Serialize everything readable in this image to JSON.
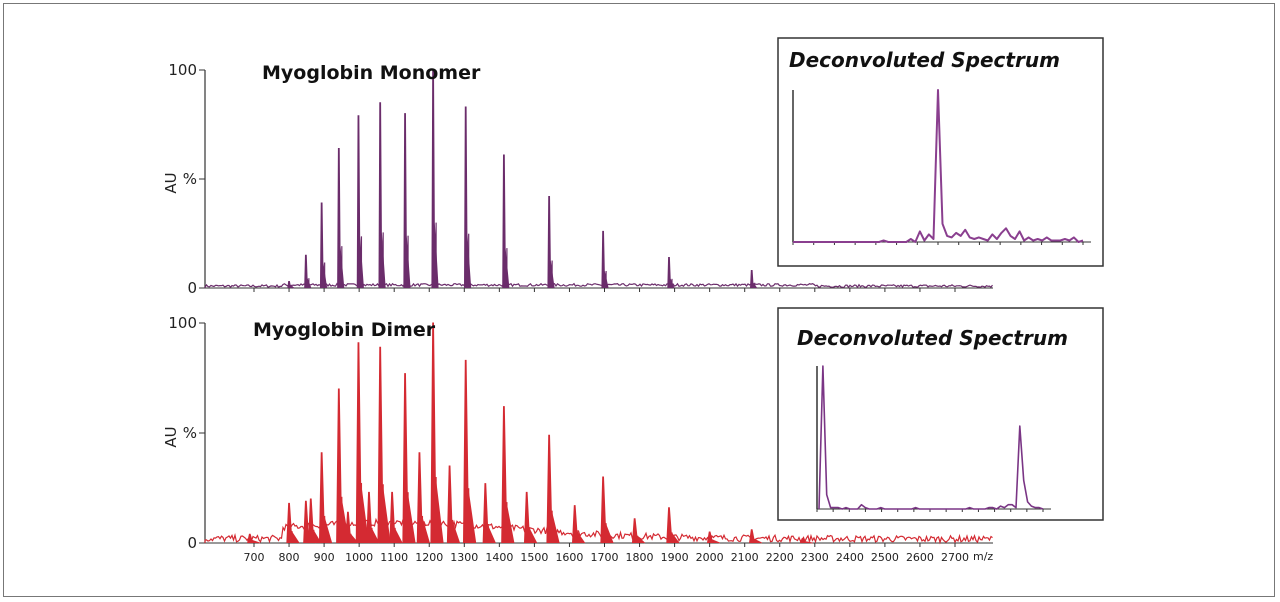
{
  "chart_data": [
    {
      "type": "line",
      "title": "Myoglobin Monomer",
      "ylabel": "AU",
      "xlabel": "m/z",
      "ytick_labels": [
        "100",
        "%",
        "0"
      ],
      "xlim": [
        557,
        2808
      ],
      "ylim": [
        0,
        100
      ],
      "color": "#6b2d6b",
      "peaks": [
        {
          "x": 800,
          "y": 3
        },
        {
          "x": 848,
          "y": 15
        },
        {
          "x": 893,
          "y": 39
        },
        {
          "x": 942,
          "y": 64
        },
        {
          "x": 998,
          "y": 79
        },
        {
          "x": 1060,
          "y": 85
        },
        {
          "x": 1131,
          "y": 80
        },
        {
          "x": 1211,
          "y": 100
        },
        {
          "x": 1304,
          "y": 83
        },
        {
          "x": 1413,
          "y": 61
        },
        {
          "x": 1542,
          "y": 42
        },
        {
          "x": 1696,
          "y": 26
        },
        {
          "x": 1884,
          "y": 14
        },
        {
          "x": 2120,
          "y": 8
        }
      ],
      "inset": {
        "title": "Deconvoluted Spectrum",
        "color": "#8a3f8f",
        "profile": [
          0,
          0,
          0,
          0,
          0,
          0,
          0,
          0,
          0,
          0,
          0,
          0,
          0,
          0,
          0,
          0,
          0,
          0,
          0,
          0,
          1,
          0,
          0,
          0,
          0,
          0,
          2,
          0,
          7,
          1,
          5,
          2,
          100,
          12,
          4,
          3,
          6,
          4,
          8,
          3,
          2,
          3,
          2,
          1,
          5,
          2,
          6,
          9,
          4,
          2,
          7,
          1,
          3,
          1,
          2,
          1,
          3,
          1,
          1,
          1,
          2,
          1,
          3,
          0,
          1
        ]
      }
    },
    {
      "type": "line",
      "title": "Myoglobin Dimer",
      "ylabel": "AU",
      "xlabel": "m/z",
      "ytick_labels": [
        "100",
        "%",
        "0"
      ],
      "xlim": [
        557,
        2808
      ],
      "ylim": [
        0,
        100
      ],
      "color": "#d42a32",
      "peaks": [
        {
          "x": 688,
          "y": 4
        },
        {
          "x": 800,
          "y": 18
        },
        {
          "x": 848,
          "y": 19
        },
        {
          "x": 862,
          "y": 20
        },
        {
          "x": 893,
          "y": 41
        },
        {
          "x": 942,
          "y": 70
        },
        {
          "x": 968,
          "y": 14
        },
        {
          "x": 998,
          "y": 91
        },
        {
          "x": 1028,
          "y": 23
        },
        {
          "x": 1060,
          "y": 89
        },
        {
          "x": 1094,
          "y": 23
        },
        {
          "x": 1131,
          "y": 77
        },
        {
          "x": 1172,
          "y": 41
        },
        {
          "x": 1211,
          "y": 100
        },
        {
          "x": 1258,
          "y": 35
        },
        {
          "x": 1304,
          "y": 83
        },
        {
          "x": 1360,
          "y": 27
        },
        {
          "x": 1413,
          "y": 62
        },
        {
          "x": 1478,
          "y": 23
        },
        {
          "x": 1542,
          "y": 49
        },
        {
          "x": 1615,
          "y": 17
        },
        {
          "x": 1696,
          "y": 30
        },
        {
          "x": 1786,
          "y": 11
        },
        {
          "x": 1884,
          "y": 16
        },
        {
          "x": 2000,
          "y": 5
        },
        {
          "x": 2120,
          "y": 6
        },
        {
          "x": 2265,
          "y": 2
        }
      ],
      "inset": {
        "title": "Deconvoluted Spectrum",
        "color": "#7a3585",
        "profile": [
          0,
          100,
          10,
          1,
          1,
          1,
          0,
          1,
          0,
          0,
          0,
          3,
          1,
          0,
          0,
          0,
          1,
          0,
          0,
          0,
          0,
          0,
          0,
          0,
          0,
          1,
          0,
          0,
          0,
          0,
          0,
          0,
          0,
          0,
          0,
          0,
          0,
          0,
          0,
          1,
          0,
          0,
          0,
          0,
          1,
          1,
          0,
          2,
          1,
          3,
          3,
          1,
          58,
          20,
          5,
          2,
          1,
          1,
          0
        ]
      }
    }
  ],
  "x_tick_labels": [
    "700",
    "800",
    "900",
    "1000",
    "1100",
    "1200",
    "1300",
    "1400",
    "1500",
    "1600",
    "1700",
    "1800",
    "1900",
    "2000",
    "2100",
    "2200",
    "2300",
    "2400",
    "2500",
    "2600",
    "2700"
  ],
  "x_unit": "m/z"
}
